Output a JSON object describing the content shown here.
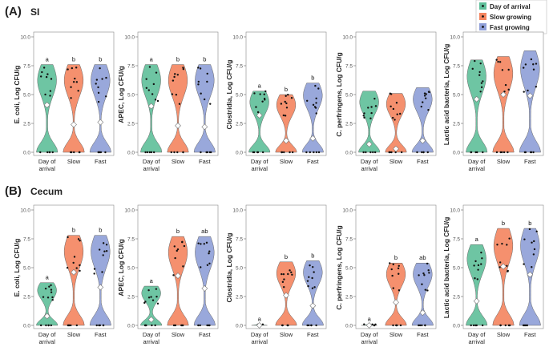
{
  "figure": {
    "section_a": {
      "letter": "(A)",
      "title": "SI"
    },
    "section_b": {
      "letter": "(B)",
      "title": "Cecum"
    }
  },
  "legend": {
    "entries": [
      {
        "label": "Day of arrival",
        "color": "#5fbf9a"
      },
      {
        "label": "Slow growing",
        "color": "#f4845f"
      },
      {
        "label": "Fast growing",
        "color": "#8f9fd8"
      }
    ]
  },
  "axis_common": {
    "y_ticks": [
      "0.0",
      "2.5",
      "5.0",
      "7.5",
      "10.0"
    ],
    "categories": [
      "Day of arrival",
      "Slow",
      "Fast"
    ]
  },
  "chart_data": [
    {
      "type": "violin",
      "panel": "SI",
      "ylabel": "E. coli, Log CFU/g",
      "ylim": [
        0,
        10
      ],
      "categories": [
        "Day of arrival",
        "Slow",
        "Fast"
      ],
      "max": [
        7.6,
        7.6,
        7.6
      ],
      "median": [
        4.1,
        2.4,
        2.6
      ],
      "letters": [
        "a",
        "b",
        "b"
      ]
    },
    {
      "type": "violin",
      "panel": "SI",
      "ylabel": "APEC, Log CFU/g",
      "ylim": [
        0,
        10
      ],
      "categories": [
        "Day of arrival",
        "Slow",
        "Fast"
      ],
      "max": [
        7.6,
        7.6,
        7.6
      ],
      "median": [
        4.0,
        2.3,
        2.2
      ],
      "letters": [
        "a",
        "b",
        "b"
      ]
    },
    {
      "type": "violin",
      "panel": "SI",
      "ylabel": "Clostridia, Log CFU/g",
      "ylim": [
        0,
        10
      ],
      "categories": [
        "Day of arrival",
        "Slow",
        "Fast"
      ],
      "max": [
        5.3,
        5.0,
        6.0
      ],
      "median": [
        3.2,
        1.0,
        1.2
      ],
      "letters": [
        "a",
        "b",
        "b"
      ]
    },
    {
      "type": "violin",
      "panel": "SI",
      "ylabel": "C. perfringens, Log CFU/g",
      "ylim": [
        0,
        10
      ],
      "categories": [
        "Day of arrival",
        "Slow",
        "Fast"
      ],
      "max": [
        5.3,
        5.1,
        5.6
      ],
      "median": [
        0.7,
        0.3,
        1.0
      ],
      "letters": [
        "",
        "",
        ""
      ]
    },
    {
      "type": "violin",
      "panel": "SI",
      "ylabel": "Lactic acid bacteria, Log CFU/g",
      "ylim": [
        0,
        10
      ],
      "categories": [
        "Day of arrival",
        "Slow",
        "Fast"
      ],
      "max": [
        8.0,
        8.3,
        8.8
      ],
      "median": [
        4.6,
        5.0,
        4.9
      ],
      "letters": [
        "",
        "",
        ""
      ]
    },
    {
      "type": "violin",
      "panel": "Cecum",
      "ylabel": "E. coli, Log CFU/g",
      "ylim": [
        0,
        10
      ],
      "categories": [
        "Day of arrival",
        "Slow",
        "Fast"
      ],
      "max": [
        3.7,
        7.8,
        7.8
      ],
      "median": [
        0.8,
        4.6,
        3.3
      ],
      "letters": [
        "a",
        "b",
        "b"
      ]
    },
    {
      "type": "violin",
      "panel": "Cecum",
      "ylabel": "APEC, Log CFU/g",
      "ylim": [
        0,
        10
      ],
      "categories": [
        "Day of arrival",
        "Slow",
        "Fast"
      ],
      "max": [
        3.4,
        7.7,
        7.7
      ],
      "median": [
        0.5,
        4.3,
        3.2
      ],
      "letters": [
        "a",
        "b",
        "ab"
      ]
    },
    {
      "type": "violin",
      "panel": "Cecum",
      "ylabel": "Clostridia, Log CFU/g",
      "ylim": [
        0,
        10
      ],
      "categories": [
        "Day of arrival",
        "Slow",
        "Fast"
      ],
      "max": [
        0.1,
        5.5,
        5.6
      ],
      "median": [
        0.0,
        2.6,
        1.7
      ],
      "letters": [
        "a",
        "b",
        "b"
      ]
    },
    {
      "type": "violin",
      "panel": "Cecum",
      "ylabel": "C. perfringens, Log CFU/g",
      "ylim": [
        0,
        10
      ],
      "categories": [
        "Day of arrival",
        "Slow",
        "Fast"
      ],
      "max": [
        0.1,
        5.4,
        5.4
      ],
      "median": [
        0.0,
        2.0,
        1.1
      ],
      "letters": [
        "a",
        "b",
        "ab"
      ]
    },
    {
      "type": "violin",
      "panel": "Cecum",
      "ylabel": "Lactic acid bacteria, Log CFU/g",
      "ylim": [
        0,
        10
      ],
      "categories": [
        "Day of arrival",
        "Slow",
        "Fast"
      ],
      "max": [
        7.0,
        8.4,
        8.4
      ],
      "median": [
        2.1,
        5.1,
        4.4
      ],
      "letters": [
        "a",
        "b",
        "b"
      ]
    }
  ]
}
